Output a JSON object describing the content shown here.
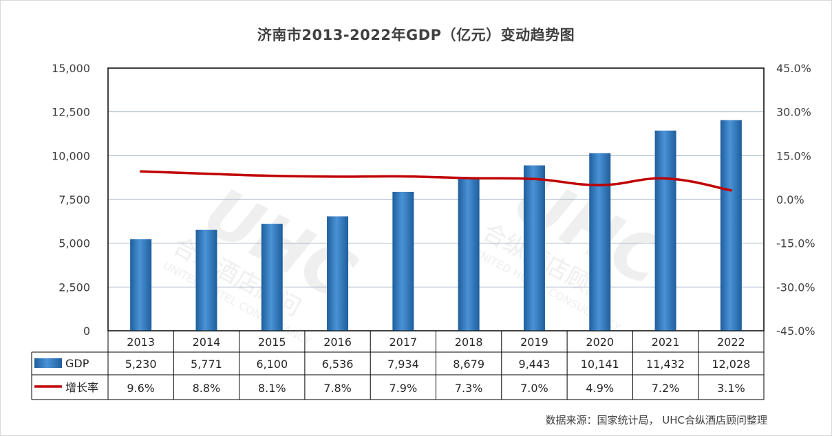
{
  "chart_data": {
    "type": "bar",
    "title": "济南市2013-2022年GDP（亿元）变动趋势图",
    "categories": [
      "2013",
      "2014",
      "2015",
      "2016",
      "2017",
      "2018",
      "2019",
      "2020",
      "2021",
      "2022"
    ],
    "series": [
      {
        "name": "GDP",
        "type": "bar",
        "axis": "left",
        "color": "#2e75b6",
        "values": [
          5230,
          5771,
          6100,
          6536,
          7934,
          8679,
          9443,
          10141,
          11432,
          12028
        ],
        "labels": [
          "5,230",
          "5,771",
          "6,100",
          "6,536",
          "7,934",
          "8,679",
          "9,443",
          "10,141",
          "11,432",
          "12,028"
        ]
      },
      {
        "name": "增长率",
        "type": "line",
        "axis": "right",
        "color": "#c00000",
        "values": [
          9.6,
          8.8,
          8.1,
          7.8,
          7.9,
          7.3,
          7.0,
          4.9,
          7.2,
          3.1
        ],
        "labels": [
          "9.6%",
          "8.8%",
          "8.1%",
          "7.8%",
          "7.9%",
          "7.3%",
          "7.0%",
          "4.9%",
          "7.2%",
          "3.1%"
        ]
      }
    ],
    "left_axis": {
      "min": 0,
      "max": 15000,
      "ticks": [
        {
          "value": 0,
          "label": "0"
        },
        {
          "value": 2500,
          "label": "2,500"
        },
        {
          "value": 5000,
          "label": "5,000"
        },
        {
          "value": 7500,
          "label": "7,500"
        },
        {
          "value": 10000,
          "label": "10,000"
        },
        {
          "value": 12500,
          "label": "12,500"
        },
        {
          "value": 15000,
          "label": "15,000"
        }
      ]
    },
    "right_axis": {
      "min": -45,
      "max": 45,
      "ticks": [
        {
          "value": -45,
          "label": "-45.0%"
        },
        {
          "value": -30,
          "label": "-30.0%"
        },
        {
          "value": -15,
          "label": "-15.0%"
        },
        {
          "value": 0,
          "label": "0.0%"
        },
        {
          "value": 15,
          "label": "15.0%"
        },
        {
          "value": 30,
          "label": "30.0%"
        },
        {
          "value": 45,
          "label": "45.0%"
        }
      ]
    },
    "grid": true,
    "legend": "data-table"
  },
  "watermark": "UHC 合纵酒店顾问 UNITED HOTEL CONSULTANCY",
  "source_note": "数据来源：国家统计局， UHC合纵酒店顾问整理"
}
